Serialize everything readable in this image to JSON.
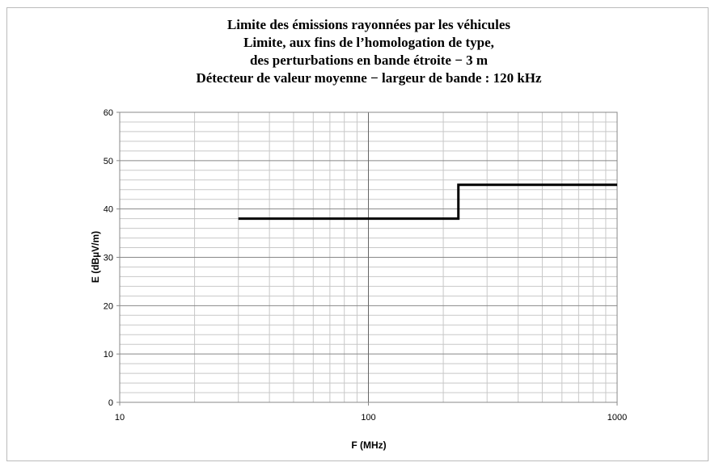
{
  "chart_data": {
    "type": "line",
    "title": [
      "Limite des émissions rayonnées par les véhicules",
      "Limite, aux fins de l’homologation de type,",
      "des perturbations en bande étroite − 3 m",
      "Détecteur de valeur moyenne − largeur de bande : 120 kHz"
    ],
    "x_label": "F (MHz)",
    "y_label": "E (dBµV/m)",
    "x": [
      30,
      230,
      230,
      1000
    ],
    "series": [
      {
        "color": "#000000",
        "values": [
          38,
          38,
          45,
          45
        ]
      }
    ],
    "xlim": [
      10,
      1000
    ],
    "xticks": [
      10,
      100,
      1000
    ],
    "x_log": true,
    "x_minor_ticks": [
      20,
      30,
      40,
      50,
      60,
      70,
      80,
      90,
      200,
      300,
      400,
      500,
      600,
      700,
      800,
      900
    ],
    "ylim": [
      0,
      60
    ],
    "yticks": [
      0,
      10,
      20,
      30,
      40,
      50,
      60
    ],
    "y_minor_ticks": [
      2,
      4,
      6,
      8,
      12,
      14,
      16,
      18,
      22,
      24,
      26,
      28,
      32,
      34,
      36,
      38,
      42,
      44,
      46,
      48,
      52,
      54,
      56,
      58
    ],
    "grid": true
  }
}
